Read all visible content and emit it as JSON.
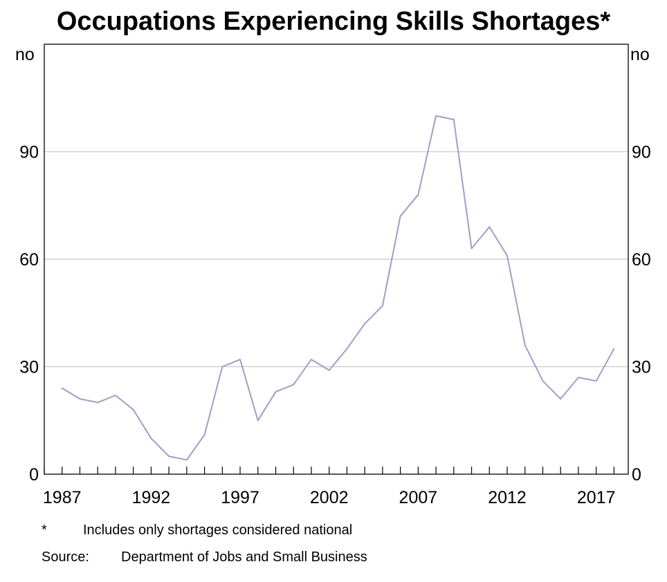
{
  "chart_data": {
    "type": "line",
    "title": "Occupations Experiencing Skills Shortages*",
    "ylabel_left": "no",
    "ylabel_right": "no",
    "ylim": [
      0,
      120
    ],
    "yticks": [
      0,
      30,
      60,
      90
    ],
    "xlim": [
      1986,
      2018.8
    ],
    "xticks": [
      1987,
      1992,
      1997,
      2002,
      2007,
      2012,
      2017
    ],
    "grid": true,
    "line_color": "#a899c8",
    "series": [
      {
        "x": [
          1987,
          1988,
          1989,
          1990,
          1991,
          1992,
          1993,
          1994,
          1995,
          1996,
          1997,
          1998,
          1999,
          2000,
          2001,
          2002,
          2003,
          2004,
          2005,
          2006,
          2007,
          2008,
          2009,
          2010,
          2011,
          2012,
          2013,
          2014,
          2015,
          2016,
          2017,
          2018
        ],
        "values": [
          24,
          21,
          20,
          22,
          18,
          10,
          5,
          4,
          11,
          30,
          32,
          15,
          23,
          25,
          32,
          29,
          35,
          42,
          47,
          72,
          78,
          100,
          99,
          63,
          69,
          61,
          36,
          26,
          21,
          27,
          26,
          35
        ]
      }
    ]
  },
  "notes": {
    "footnote_marker": "*",
    "footnote_text": "Includes only shortages considered national",
    "source_label": "Source:",
    "source_text": "Department of Jobs and Small Business"
  }
}
